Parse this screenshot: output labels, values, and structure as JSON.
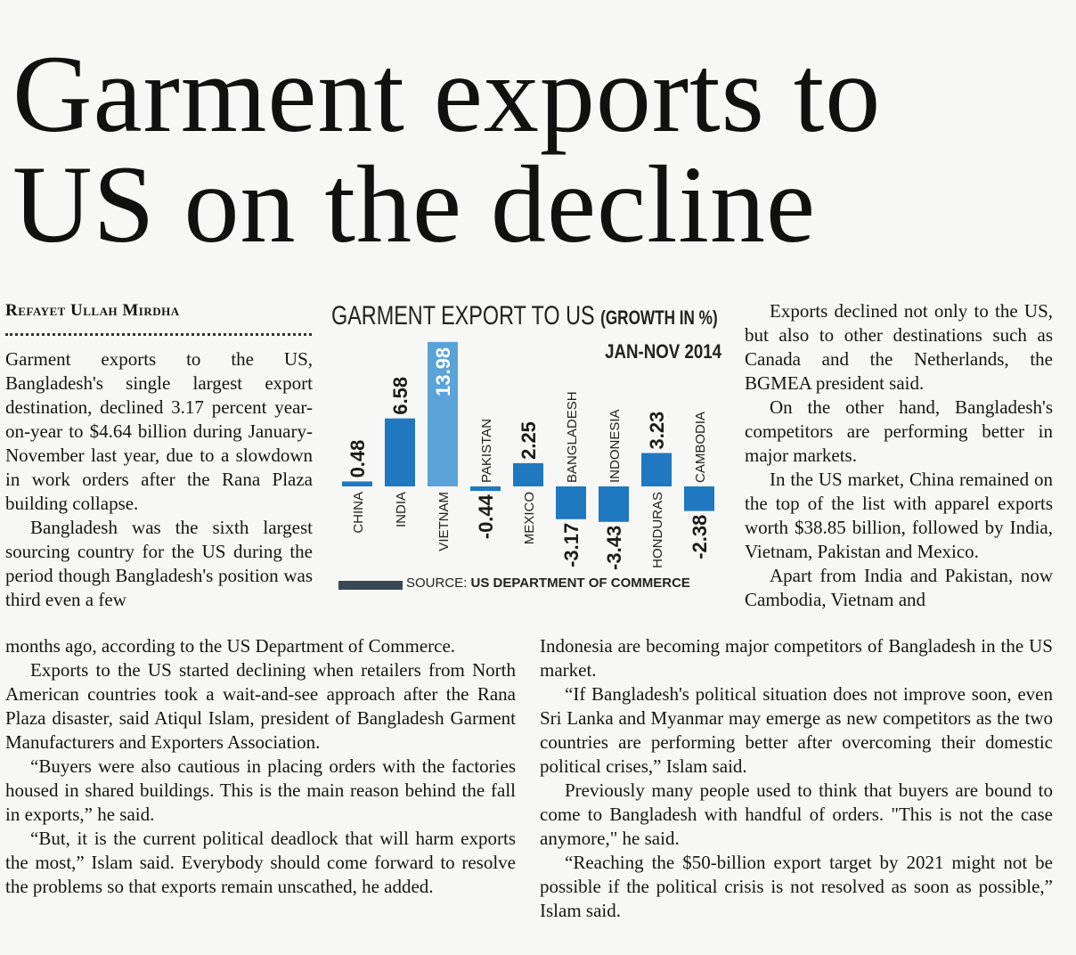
{
  "headline": {
    "line1": "Garment exports to",
    "line2": "US on the decline"
  },
  "byline": "Refayet Ullah Mirdha",
  "chart": {
    "title": "GARMENT EXPORT TO US ",
    "subtitle": "(GROWTH IN %)",
    "period": "JAN-NOV 2014",
    "source_label": "SOURCE: ",
    "source_text": "US DEPARTMENT OF COMMERCE"
  },
  "chart_data": {
    "type": "bar",
    "categories": [
      "CHINA",
      "INDIA",
      "VIETNAM",
      "PAKISTAN",
      "MEXICO",
      "BANGLADESH",
      "INDONESIA",
      "HONDURAS",
      "CAMBODIA"
    ],
    "values": [
      0.48,
      6.58,
      13.98,
      -0.44,
      2.25,
      -3.17,
      -3.43,
      3.23,
      -2.38
    ],
    "value_labels": [
      "0.48",
      "6.58",
      "13.98",
      "-0.44",
      "2.25",
      "-3.17",
      "-3.43",
      "3.23",
      "-2.38"
    ],
    "title": "GARMENT EXPORT TO US (GROWTH IN %)",
    "colors": {
      "bar": "#1f78c0",
      "highlight_bar": "#5aa3d8",
      "baseline": "#3c4756"
    }
  },
  "article": {
    "left_top": [
      "Garment exports to the US, Bangladesh's single largest export destination, declined 3.17 percent year-on-year to $4.64 billion during January-November last year, due to a slowdown in work orders after the Rana Plaza building collapse.",
      "Bangladesh was the sixth largest sourcing country for the US during the period though Bangladesh's position was third even a few"
    ],
    "left_bottom": [
      "months ago, according to the US Department of Commerce.",
      "Exports to the US started declining when retailers from North American countries took a wait-and-see approach after the Rana Plaza disaster, said Atiqul Islam, president of Bangladesh Garment Manufacturers and Exporters Association.",
      "“Buyers were also cautious in placing orders with the factories housed in shared buildings. This is the main reason behind the fall in exports,” he said.",
      "“But, it is the current political deadlock that will harm exports the most,” Islam said. Everybody should come forward to resolve the problems so that exports remain unscathed, he added."
    ],
    "right_top": [
      "Exports declined not only to the US, but also to other destinations such as Canada and the Netherlands, the BGMEA president said.",
      "On the other hand, Bangladesh's competitors are performing better in major markets.",
      "In the US market, China remained on the top of the list with apparel exports worth $38.85 billion, followed by India, Vietnam, Pakistan and Mexico.",
      "Apart from India and Pakistan, now Cambodia, Vietnam and"
    ],
    "right_bottom": [
      "Indonesia are becoming major competitors of Bangladesh in the US market.",
      "“If Bangladesh's political situation does not improve soon, even Sri Lanka and Myanmar may emerge as new competitors as the two countries are performing better after overcoming their domestic political crises,” Islam said.",
      "Previously many people used to think that buyers are bound to come to Bangladesh with handful of orders. \"This is not the case anymore,\" he said.",
      "“Reaching the $50-billion export target by 2021 might not be possible if the political crisis is not resolved as soon as possible,” Islam said."
    ]
  }
}
